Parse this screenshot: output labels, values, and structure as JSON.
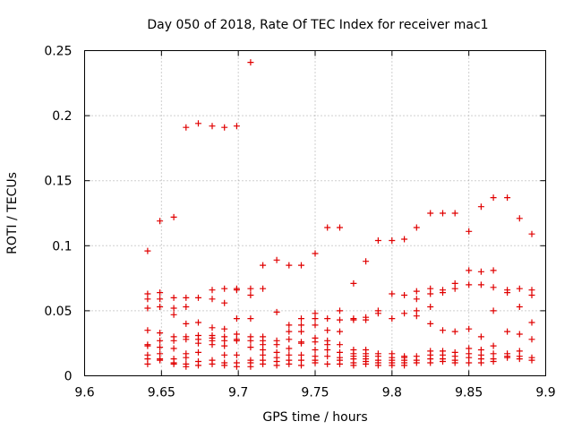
{
  "chart_data": {
    "type": "scatter",
    "title": "Day 050 of 2018, Rate Of TEC Index for receiver mac1",
    "xlabel": "GPS time / hours",
    "ylabel": "ROTI / TECUs",
    "xlim": [
      9.6,
      9.9
    ],
    "ylim": [
      0,
      0.25
    ],
    "xticks": [
      9.6,
      9.65,
      9.7,
      9.75,
      9.8,
      9.85,
      9.9
    ],
    "xtick_labels": [
      "9.6",
      "9.65",
      "9.7",
      "9.75",
      "9.8",
      "9.85",
      "9.9"
    ],
    "yticks": [
      0,
      0.05,
      0.1,
      0.15,
      0.2,
      0.25
    ],
    "ytick_labels": [
      "0",
      "0.05",
      "0.1",
      "0.15",
      "0.2",
      "0.25"
    ],
    "grid": true,
    "marker": "+",
    "color": "#e00000",
    "series": [
      {
        "name": "ROTI",
        "points": [
          [
            9.641,
            0.096
          ],
          [
            9.641,
            0.063
          ],
          [
            9.641,
            0.059
          ],
          [
            9.641,
            0.052
          ],
          [
            9.641,
            0.035
          ],
          [
            9.641,
            0.024
          ],
          [
            9.641,
            0.023
          ],
          [
            9.641,
            0.016
          ],
          [
            9.641,
            0.013
          ],
          [
            9.641,
            0.009
          ],
          [
            9.649,
            0.119
          ],
          [
            9.649,
            0.064
          ],
          [
            9.649,
            0.059
          ],
          [
            9.649,
            0.053
          ],
          [
            9.649,
            0.033
          ],
          [
            9.649,
            0.027
          ],
          [
            9.649,
            0.022
          ],
          [
            9.649,
            0.017
          ],
          [
            9.649,
            0.013
          ],
          [
            9.649,
            0.012
          ],
          [
            9.658,
            0.122
          ],
          [
            9.658,
            0.06
          ],
          [
            9.658,
            0.052
          ],
          [
            9.658,
            0.047
          ],
          [
            9.658,
            0.03
          ],
          [
            9.658,
            0.027
          ],
          [
            9.658,
            0.021
          ],
          [
            9.658,
            0.013
          ],
          [
            9.658,
            0.01
          ],
          [
            9.658,
            0.009
          ],
          [
            9.666,
            0.191
          ],
          [
            9.666,
            0.06
          ],
          [
            9.666,
            0.053
          ],
          [
            9.666,
            0.04
          ],
          [
            9.666,
            0.03
          ],
          [
            9.666,
            0.028
          ],
          [
            9.666,
            0.017
          ],
          [
            9.666,
            0.014
          ],
          [
            9.666,
            0.009
          ],
          [
            9.666,
            0.007
          ],
          [
            9.674,
            0.194
          ],
          [
            9.674,
            0.06
          ],
          [
            9.674,
            0.041
          ],
          [
            9.674,
            0.031
          ],
          [
            9.674,
            0.028
          ],
          [
            9.674,
            0.025
          ],
          [
            9.674,
            0.018
          ],
          [
            9.674,
            0.011
          ],
          [
            9.674,
            0.008
          ],
          [
            9.683,
            0.192
          ],
          [
            9.683,
            0.066
          ],
          [
            9.683,
            0.059
          ],
          [
            9.683,
            0.037
          ],
          [
            9.683,
            0.031
          ],
          [
            9.683,
            0.029
          ],
          [
            9.683,
            0.027
          ],
          [
            9.683,
            0.024
          ],
          [
            9.683,
            0.012
          ],
          [
            9.683,
            0.009
          ],
          [
            9.691,
            0.191
          ],
          [
            9.691,
            0.067
          ],
          [
            9.691,
            0.056
          ],
          [
            9.691,
            0.036
          ],
          [
            9.691,
            0.03
          ],
          [
            9.691,
            0.027
          ],
          [
            9.691,
            0.023
          ],
          [
            9.691,
            0.016
          ],
          [
            9.691,
            0.01
          ],
          [
            9.691,
            0.008
          ],
          [
            9.699,
            0.192
          ],
          [
            9.699,
            0.067
          ],
          [
            9.699,
            0.066
          ],
          [
            9.699,
            0.044
          ],
          [
            9.699,
            0.032
          ],
          [
            9.699,
            0.028
          ],
          [
            9.699,
            0.027
          ],
          [
            9.699,
            0.016
          ],
          [
            9.699,
            0.01
          ],
          [
            9.699,
            0.007
          ],
          [
            9.708,
            0.241
          ],
          [
            9.708,
            0.067
          ],
          [
            9.708,
            0.062
          ],
          [
            9.708,
            0.044
          ],
          [
            9.708,
            0.03
          ],
          [
            9.708,
            0.027
          ],
          [
            9.708,
            0.022
          ],
          [
            9.708,
            0.012
          ],
          [
            9.708,
            0.01
          ],
          [
            9.708,
            0.007
          ],
          [
            9.716,
            0.085
          ],
          [
            9.716,
            0.067
          ],
          [
            9.716,
            0.03
          ],
          [
            9.716,
            0.027
          ],
          [
            9.716,
            0.024
          ],
          [
            9.716,
            0.02
          ],
          [
            9.716,
            0.016
          ],
          [
            9.716,
            0.012
          ],
          [
            9.716,
            0.009
          ],
          [
            9.725,
            0.089
          ],
          [
            9.725,
            0.049
          ],
          [
            9.725,
            0.027
          ],
          [
            9.725,
            0.024
          ],
          [
            9.725,
            0.018
          ],
          [
            9.725,
            0.014
          ],
          [
            9.725,
            0.011
          ],
          [
            9.725,
            0.008
          ],
          [
            9.733,
            0.085
          ],
          [
            9.733,
            0.039
          ],
          [
            9.733,
            0.034
          ],
          [
            9.733,
            0.028
          ],
          [
            9.733,
            0.021
          ],
          [
            9.733,
            0.016
          ],
          [
            9.733,
            0.012
          ],
          [
            9.733,
            0.009
          ],
          [
            9.741,
            0.085
          ],
          [
            9.741,
            0.044
          ],
          [
            9.741,
            0.039
          ],
          [
            9.741,
            0.034
          ],
          [
            9.741,
            0.026
          ],
          [
            9.741,
            0.025
          ],
          [
            9.741,
            0.016
          ],
          [
            9.741,
            0.012
          ],
          [
            9.741,
            0.008
          ],
          [
            9.75,
            0.094
          ],
          [
            9.75,
            0.048
          ],
          [
            9.75,
            0.044
          ],
          [
            9.75,
            0.039
          ],
          [
            9.75,
            0.029
          ],
          [
            9.75,
            0.026
          ],
          [
            9.75,
            0.02
          ],
          [
            9.75,
            0.015
          ],
          [
            9.75,
            0.012
          ],
          [
            9.75,
            0.01
          ],
          [
            9.758,
            0.114
          ],
          [
            9.758,
            0.044
          ],
          [
            9.758,
            0.035
          ],
          [
            9.758,
            0.027
          ],
          [
            9.758,
            0.024
          ],
          [
            9.758,
            0.02
          ],
          [
            9.758,
            0.015
          ],
          [
            9.758,
            0.009
          ],
          [
            9.766,
            0.114
          ],
          [
            9.766,
            0.05
          ],
          [
            9.766,
            0.043
          ],
          [
            9.766,
            0.034
          ],
          [
            9.766,
            0.024
          ],
          [
            9.766,
            0.018
          ],
          [
            9.766,
            0.014
          ],
          [
            9.766,
            0.012
          ],
          [
            9.766,
            0.009
          ],
          [
            9.775,
            0.071
          ],
          [
            9.775,
            0.044
          ],
          [
            9.775,
            0.043
          ],
          [
            9.775,
            0.02
          ],
          [
            9.775,
            0.017
          ],
          [
            9.775,
            0.015
          ],
          [
            9.775,
            0.013
          ],
          [
            9.775,
            0.01
          ],
          [
            9.775,
            0.008
          ],
          [
            9.783,
            0.088
          ],
          [
            9.783,
            0.045
          ],
          [
            9.783,
            0.043
          ],
          [
            9.783,
            0.02
          ],
          [
            9.783,
            0.017
          ],
          [
            9.783,
            0.015
          ],
          [
            9.783,
            0.013
          ],
          [
            9.783,
            0.011
          ],
          [
            9.783,
            0.009
          ],
          [
            9.791,
            0.104
          ],
          [
            9.791,
            0.05
          ],
          [
            9.791,
            0.048
          ],
          [
            9.791,
            0.017
          ],
          [
            9.791,
            0.015
          ],
          [
            9.791,
            0.012
          ],
          [
            9.791,
            0.01
          ],
          [
            9.791,
            0.008
          ],
          [
            9.8,
            0.104
          ],
          [
            9.8,
            0.063
          ],
          [
            9.8,
            0.044
          ],
          [
            9.8,
            0.017
          ],
          [
            9.8,
            0.014
          ],
          [
            9.8,
            0.012
          ],
          [
            9.8,
            0.01
          ],
          [
            9.8,
            0.008
          ],
          [
            9.808,
            0.105
          ],
          [
            9.808,
            0.062
          ],
          [
            9.808,
            0.048
          ],
          [
            9.808,
            0.015
          ],
          [
            9.808,
            0.014
          ],
          [
            9.808,
            0.012
          ],
          [
            9.808,
            0.01
          ],
          [
            9.808,
            0.008
          ],
          [
            9.816,
            0.114
          ],
          [
            9.816,
            0.065
          ],
          [
            9.816,
            0.059
          ],
          [
            9.816,
            0.05
          ],
          [
            9.816,
            0.046
          ],
          [
            9.816,
            0.015
          ],
          [
            9.816,
            0.012
          ],
          [
            9.816,
            0.01
          ],
          [
            9.825,
            0.125
          ],
          [
            9.825,
            0.067
          ],
          [
            9.825,
            0.063
          ],
          [
            9.825,
            0.053
          ],
          [
            9.825,
            0.04
          ],
          [
            9.825,
            0.019
          ],
          [
            9.825,
            0.016
          ],
          [
            9.825,
            0.013
          ],
          [
            9.825,
            0.01
          ],
          [
            9.833,
            0.125
          ],
          [
            9.833,
            0.066
          ],
          [
            9.833,
            0.064
          ],
          [
            9.833,
            0.035
          ],
          [
            9.833,
            0.019
          ],
          [
            9.833,
            0.016
          ],
          [
            9.833,
            0.013
          ],
          [
            9.833,
            0.011
          ],
          [
            9.841,
            0.125
          ],
          [
            9.841,
            0.071
          ],
          [
            9.841,
            0.067
          ],
          [
            9.841,
            0.034
          ],
          [
            9.841,
            0.018
          ],
          [
            9.841,
            0.015
          ],
          [
            9.841,
            0.012
          ],
          [
            9.841,
            0.01
          ],
          [
            9.85,
            0.111
          ],
          [
            9.85,
            0.081
          ],
          [
            9.85,
            0.07
          ],
          [
            9.85,
            0.036
          ],
          [
            9.85,
            0.021
          ],
          [
            9.85,
            0.017
          ],
          [
            9.85,
            0.014
          ],
          [
            9.85,
            0.01
          ],
          [
            9.858,
            0.13
          ],
          [
            9.858,
            0.08
          ],
          [
            9.858,
            0.07
          ],
          [
            9.858,
            0.03
          ],
          [
            9.858,
            0.02
          ],
          [
            9.858,
            0.016
          ],
          [
            9.858,
            0.013
          ],
          [
            9.858,
            0.01
          ],
          [
            9.866,
            0.137
          ],
          [
            9.866,
            0.081
          ],
          [
            9.866,
            0.068
          ],
          [
            9.866,
            0.05
          ],
          [
            9.866,
            0.023
          ],
          [
            9.866,
            0.017
          ],
          [
            9.866,
            0.013
          ],
          [
            9.866,
            0.011
          ],
          [
            9.875,
            0.137
          ],
          [
            9.875,
            0.066
          ],
          [
            9.875,
            0.064
          ],
          [
            9.875,
            0.034
          ],
          [
            9.875,
            0.017
          ],
          [
            9.875,
            0.015
          ],
          [
            9.875,
            0.014
          ],
          [
            9.883,
            0.121
          ],
          [
            9.883,
            0.067
          ],
          [
            9.883,
            0.053
          ],
          [
            9.883,
            0.032
          ],
          [
            9.883,
            0.019
          ],
          [
            9.883,
            0.015
          ],
          [
            9.883,
            0.013
          ],
          [
            9.891,
            0.109
          ],
          [
            9.891,
            0.066
          ],
          [
            9.891,
            0.062
          ],
          [
            9.891,
            0.041
          ],
          [
            9.891,
            0.028
          ],
          [
            9.891,
            0.014
          ],
          [
            9.891,
            0.012
          ]
        ]
      }
    ]
  }
}
